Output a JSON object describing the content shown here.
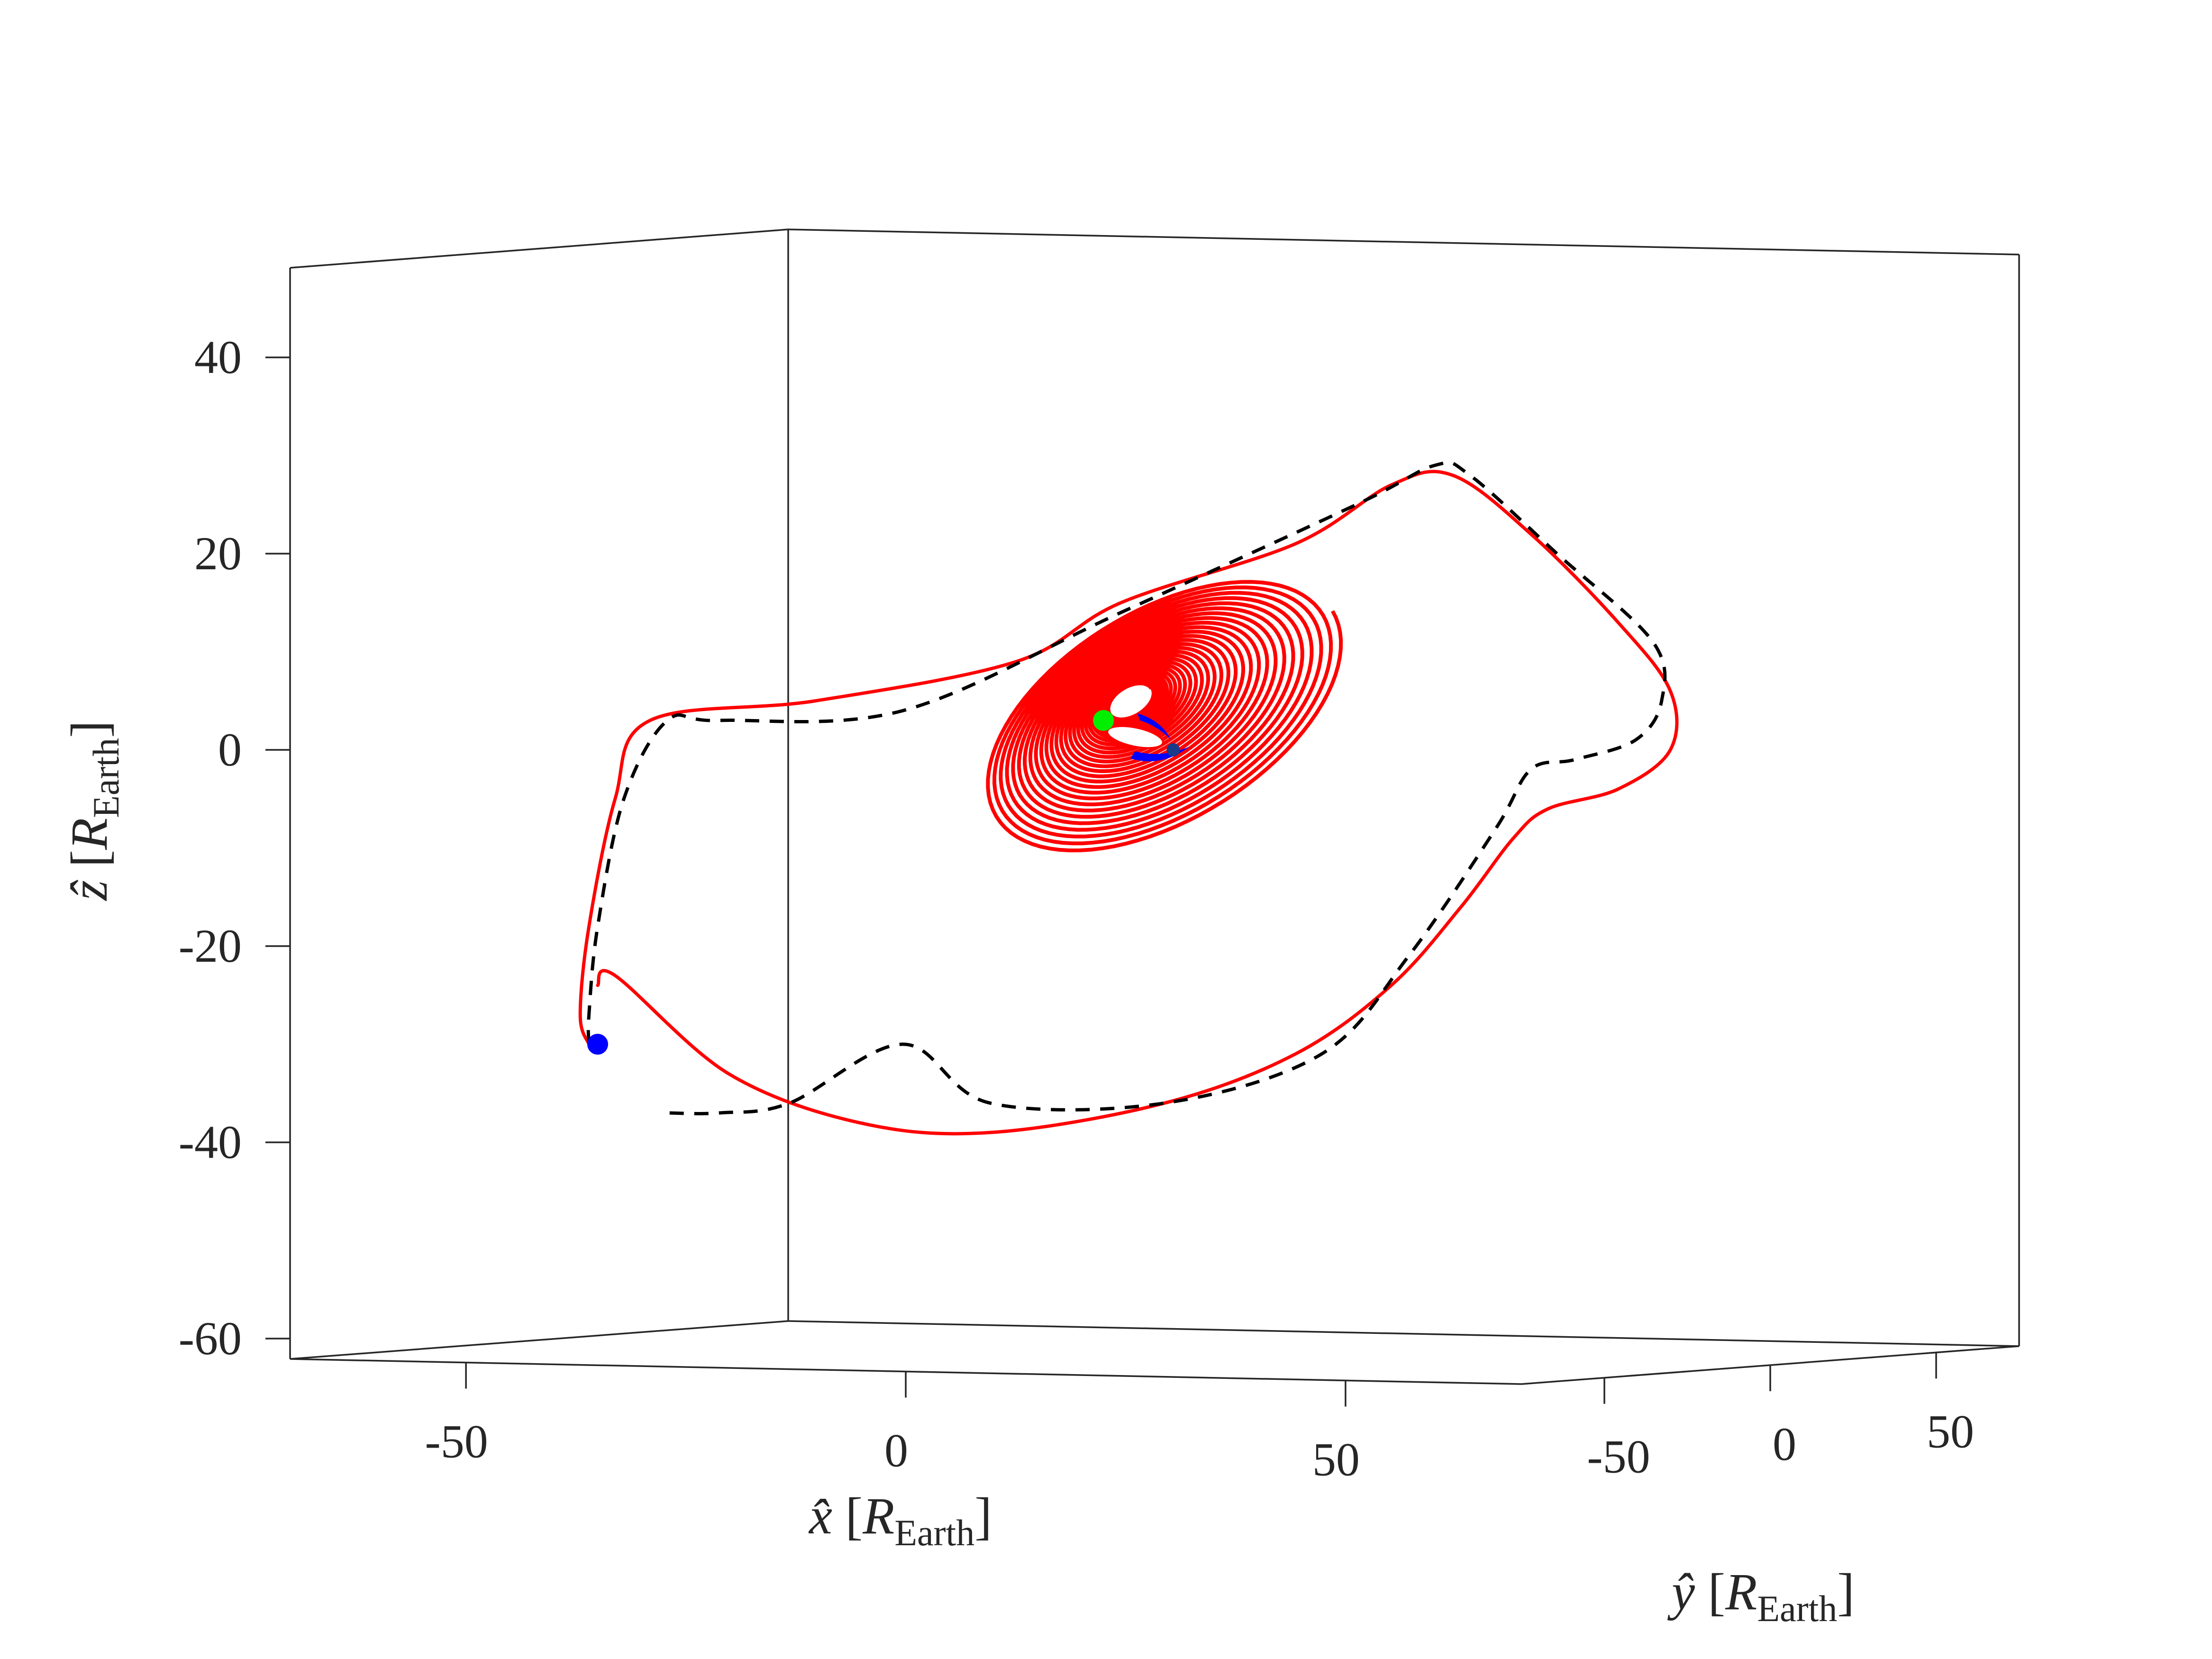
{
  "chart_data": {
    "type": "line",
    "projection": "3d",
    "xlabel": "x̂ [R_Earth]",
    "ylabel": "ŷ [R_Earth]",
    "zlabel": "ẑ [R_Earth]",
    "axes": {
      "x": {
        "symbol": "x̂",
        "unit_main": "R",
        "unit_sub": "Earth",
        "ticks": [
          -50,
          0,
          50
        ],
        "tick_labels": [
          "-50",
          "0",
          "50"
        ],
        "lim": [
          -70,
          70
        ]
      },
      "y": {
        "symbol": "ŷ",
        "unit_main": "R",
        "unit_sub": "Earth",
        "ticks": [
          -50,
          0,
          50
        ],
        "tick_labels": [
          "-50",
          "0",
          "50"
        ],
        "lim": [
          -75,
          75
        ]
      },
      "z": {
        "symbol": "ẑ",
        "unit_main": "R",
        "unit_sub": "Earth",
        "ticks": [
          40,
          20,
          0,
          -20,
          -40,
          -60
        ],
        "tick_labels": [
          "40",
          "20",
          "0",
          "-20",
          "-40",
          "-60"
        ],
        "lim": [
          -62,
          50
        ]
      }
    },
    "grid": false,
    "legend": "none",
    "series": [
      {
        "style": "solid",
        "color": "#ff0000",
        "description_points_xz_projection": [
          [
            -36,
            -30
          ],
          [
            -37,
            -27
          ],
          [
            -36,
            -18
          ],
          [
            -33,
            -5
          ],
          [
            -29,
            3
          ],
          [
            -10,
            5
          ],
          [
            13,
            9
          ],
          [
            25,
            15
          ],
          [
            45,
            21
          ],
          [
            56,
            27
          ],
          [
            63,
            28
          ],
          [
            72,
            22
          ],
          [
            82,
            13
          ],
          [
            88,
            6
          ],
          [
            88,
            0
          ],
          [
            82,
            -4
          ],
          [
            74,
            -6
          ],
          [
            70,
            -9
          ],
          [
            64,
            -16
          ],
          [
            56,
            -24
          ],
          [
            45,
            -31
          ],
          [
            30,
            -36
          ],
          [
            10,
            -39
          ],
          [
            -5,
            -38
          ],
          [
            -20,
            -33
          ],
          [
            -33,
            -23
          ],
          [
            -35,
            -24
          ]
        ],
        "spiral_center_xz": [
          26,
          5
        ]
      },
      {
        "style": "dashed",
        "color": "#000000",
        "description_points_xz_projection": [
          [
            -36,
            -30
          ],
          [
            -36,
            -27
          ],
          [
            -35,
            -18
          ],
          [
            -32,
            -5
          ],
          [
            -27,
            3
          ],
          [
            -21,
            3
          ],
          [
            0,
            4
          ],
          [
            25,
            14
          ],
          [
            52,
            25
          ],
          [
            61,
            29
          ],
          [
            65,
            28
          ],
          [
            75,
            20
          ],
          [
            86,
            11
          ],
          [
            87,
            5
          ],
          [
            84,
            1
          ],
          [
            77,
            -1
          ],
          [
            72,
            -2
          ],
          [
            68,
            -8
          ],
          [
            58,
            -21
          ],
          [
            48,
            -31
          ],
          [
            30,
            -36
          ],
          [
            10,
            -36
          ],
          [
            0,
            -30
          ],
          [
            -13,
            -36
          ],
          [
            -21,
            -37
          ],
          [
            -27,
            -37
          ]
        ]
      }
    ],
    "markers": [
      {
        "color": "#0000ff",
        "shape": "circle",
        "x": -35,
        "z": -30
      },
      {
        "color": "#00ff00",
        "shape": "circle",
        "x": 23,
        "z": 3
      },
      {
        "color": "#0000ff",
        "shape": "arc",
        "x": 31,
        "z": 0
      }
    ]
  }
}
